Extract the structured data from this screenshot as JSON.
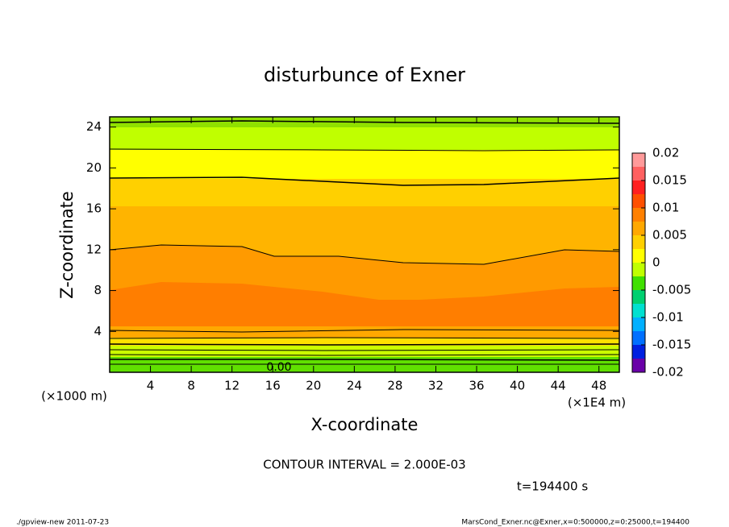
{
  "chart_data": {
    "type": "contour",
    "title": "disturbunce of Exner",
    "xlabel": "X-coordinate",
    "ylabel": "Z-coordinate",
    "xunit": "(×1E4 m)",
    "yunit": "(×1000 m)",
    "xlim": [
      0,
      50
    ],
    "xticks": [
      4,
      8,
      12,
      16,
      20,
      24,
      28,
      32,
      36,
      40,
      44,
      48
    ],
    "ylim": [
      0,
      25
    ],
    "yticks": [
      4,
      8,
      12,
      16,
      20,
      24
    ],
    "contour_label": "0.00",
    "contour_interval": "CONTOUR INTERVAL = 2.000E-03",
    "time_label": "t=194400 s",
    "colorbar": {
      "clim": [
        -0.02,
        0.02
      ],
      "ticks": [
        0.02,
        0.015,
        0.01,
        0.005,
        0,
        -0.005,
        -0.01,
        -0.015,
        -0.02
      ],
      "colors": [
        "#ff9a9a",
        "#ff6060",
        "#ff2020",
        "#ff5000",
        "#ff8000",
        "#ffa800",
        "#ffd000",
        "#ffff00",
        "#c0ff00",
        "#40e000",
        "#00d070",
        "#00e0d0",
        "#00b0ff",
        "#0070ff",
        "#0020e0",
        "#6a00a8"
      ]
    },
    "footer_left": "./gpview-new   2011-07-23",
    "footer_right": "MarsCond_Exner.nc@Exner,x=0:500000,z=0:25000,t=194400"
  }
}
